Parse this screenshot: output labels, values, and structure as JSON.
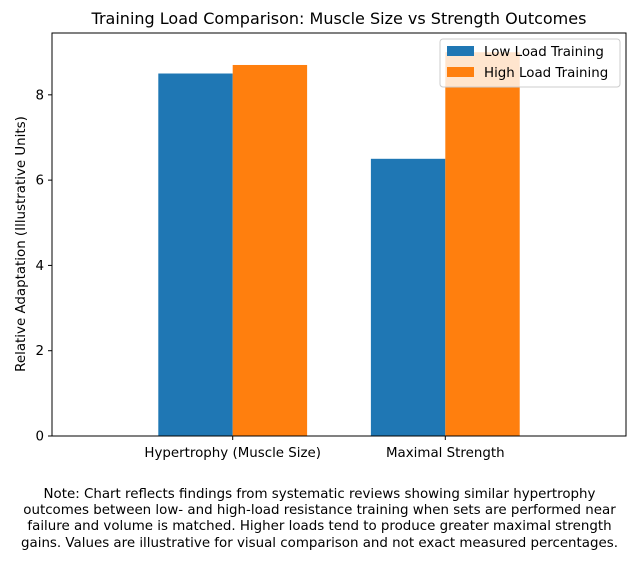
{
  "chart_data": {
    "type": "bar",
    "title": "Training Load Comparison: Muscle Size vs Strength Outcomes",
    "xlabel": "",
    "ylabel": "Relative Adaptation (Illustrative Units)",
    "categories": [
      "Hypertrophy (Muscle Size)",
      "Maximal Strength"
    ],
    "series": [
      {
        "name": "Low Load Training",
        "values": [
          8.5,
          6.5
        ],
        "color": "#1f77b4"
      },
      {
        "name": "High Load Training",
        "values": [
          8.7,
          9.0
        ],
        "color": "#ff7f0e"
      }
    ],
    "ylim": [
      0,
      9.45
    ],
    "yticks": [
      0,
      2,
      4,
      6,
      8
    ],
    "grid": false,
    "legend": "top-right"
  },
  "note": {
    "lines": [
      "Note: Chart reflects findings from systematic reviews showing similar hypertrophy",
      "outcomes between low- and high-load resistance training when sets are performed near",
      "failure and volume is matched. Higher loads tend to produce greater maximal strength",
      "gains. Values are illustrative for visual comparison and not exact measured percentages."
    ]
  }
}
